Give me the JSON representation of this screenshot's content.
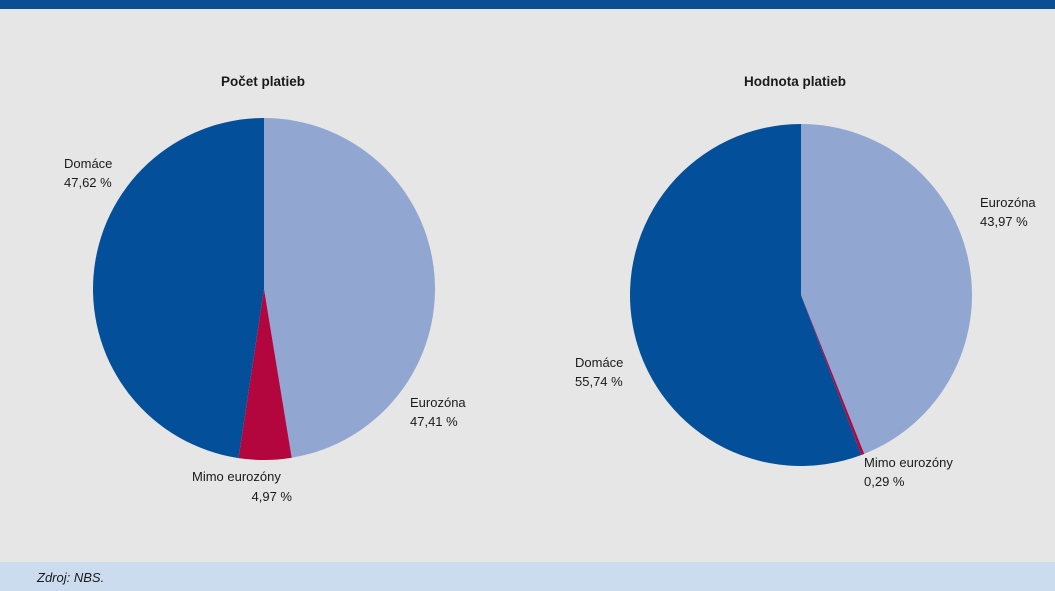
{
  "colors": {
    "top_bar": "#0a4f93",
    "background": "#e6e6e6",
    "source_background": "#ccdcef",
    "domestic": "#034f99",
    "eurozone": "#92a6d2",
    "outside_eurozone": "#b3063f"
  },
  "chart_data": [
    {
      "type": "pie",
      "title": "Počet platieb",
      "slices": [
        {
          "label": "Eurozóna",
          "value": 47.41,
          "value_text": "47,41 %",
          "color": "#92a6d2"
        },
        {
          "label": "Mimo eurozóny",
          "value": 4.97,
          "value_text": "4,97 %",
          "color": "#b3063f"
        },
        {
          "label": "Domáce",
          "value": 47.62,
          "value_text": "47,62 %",
          "color": "#034f99"
        }
      ]
    },
    {
      "type": "pie",
      "title": "Hodnota platieb",
      "slices": [
        {
          "label": "Eurozóna",
          "value": 43.97,
          "value_text": "43,97 %",
          "color": "#92a6d2"
        },
        {
          "label": "Mimo eurozóny",
          "value": 0.29,
          "value_text": "0,29 %",
          "color": "#b3063f"
        },
        {
          "label": "Domáce",
          "value": 55.74,
          "value_text": "55,74 %",
          "color": "#034f99"
        }
      ]
    }
  ],
  "source": "Zdroj: NBS."
}
